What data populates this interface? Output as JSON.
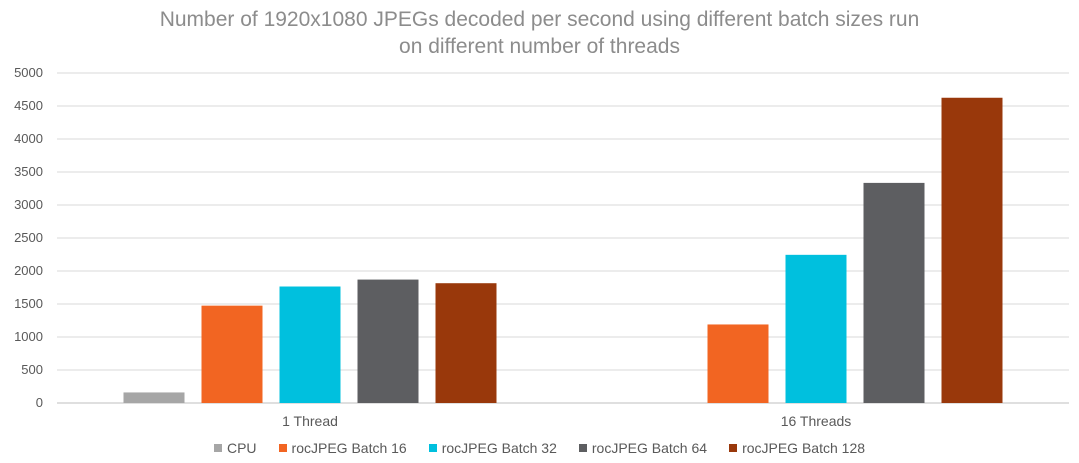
{
  "chart_data": {
    "type": "bar",
    "title": "Number of 1920x1080 JPEGs decoded per second using different batch sizes run on different number of threads",
    "title_lines": [
      "Number of 1920x1080 JPEGs decoded per second using different batch sizes run",
      "on different number of threads"
    ],
    "xlabel": "",
    "ylabel": "",
    "categories": [
      "1 Thread",
      "16 Threads"
    ],
    "ylim": [
      0,
      5000
    ],
    "yticks": [
      "0",
      "500",
      "1000",
      "1500",
      "2000",
      "2500",
      "3000",
      "3500",
      "4000",
      "4500",
      "5000"
    ],
    "grid": true,
    "legend_position": "bottom",
    "series": [
      {
        "name": "CPU",
        "color": "#a6a6a6",
        "values": [
          160,
          null
        ]
      },
      {
        "name": "rocJPEG Batch 16",
        "color": "#f26522",
        "values": [
          1475,
          1190
        ]
      },
      {
        "name": "rocJPEG Batch 32",
        "color": "#00c0de",
        "values": [
          1765,
          2245
        ]
      },
      {
        "name": "rocJPEG Batch 64",
        "color": "#5d5e61",
        "values": [
          1870,
          3335
        ]
      },
      {
        "name": "rocJPEG Batch 128",
        "color": "#99380b",
        "values": [
          1815,
          4625
        ]
      }
    ]
  }
}
